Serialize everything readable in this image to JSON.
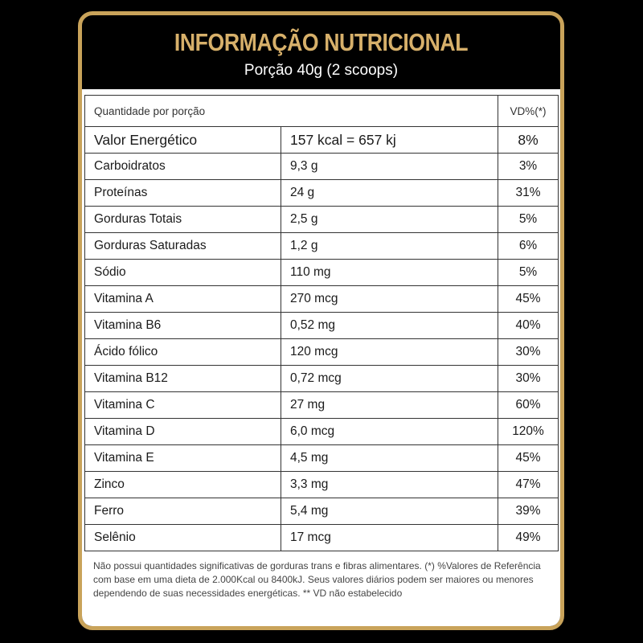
{
  "header": {
    "title": "INFORMAÇÃO NUTRICIONAL",
    "subtitle": "Porção 40g (2 scoops)"
  },
  "colors": {
    "background": "#000000",
    "gold": "#c9a35a",
    "title_gold": "#d7b06a",
    "panel": "#ffffff"
  },
  "table": {
    "header": {
      "label": "Quantidade por porção",
      "vd": "VD%(*)"
    },
    "rows": [
      {
        "name": "Valor Energético",
        "amount": "157 kcal = 657 kj",
        "vd": "8%"
      },
      {
        "name": "Carboidratos",
        "amount": "9,3 g",
        "vd": "3%"
      },
      {
        "name": "Proteínas",
        "amount": "24 g",
        "vd": "31%"
      },
      {
        "name": "Gorduras Totais",
        "amount": "2,5 g",
        "vd": "5%"
      },
      {
        "name": "Gorduras Saturadas",
        "amount": "1,2 g",
        "vd": "6%"
      },
      {
        "name": "Sódio",
        "amount": "110 mg",
        "vd": "5%"
      },
      {
        "name": "Vitamina A",
        "amount": "270 mcg",
        "vd": "45%"
      },
      {
        "name": "Vitamina B6",
        "amount": "0,52 mg",
        "vd": "40%"
      },
      {
        "name": "Ácido fólico",
        "amount": "120 mcg",
        "vd": "30%"
      },
      {
        "name": "Vitamina B12",
        "amount": "0,72 mcg",
        "vd": "30%"
      },
      {
        "name": "Vitamina C",
        "amount": "27 mg",
        "vd": "60%"
      },
      {
        "name": "Vitamina D",
        "amount": "6,0 mcg",
        "vd": "120%"
      },
      {
        "name": "Vitamina E",
        "amount": "4,5 mg",
        "vd": "45%"
      },
      {
        "name": "Zinco",
        "amount": "3,3 mg",
        "vd": "47%"
      },
      {
        "name": "Ferro",
        "amount": "5,4 mg",
        "vd": "39%"
      },
      {
        "name": "Selênio",
        "amount": "17 mcg",
        "vd": "49%"
      }
    ]
  },
  "footnote": "Não possui quantidades significativas de gorduras trans e fibras alimentares. (*) %Valores de Referência com base em uma dieta de 2.000Kcal ou 8400kJ. Seus valores diários podem ser maiores ou menores dependendo de suas necessidades energéticas. ** VD não estabelecido"
}
